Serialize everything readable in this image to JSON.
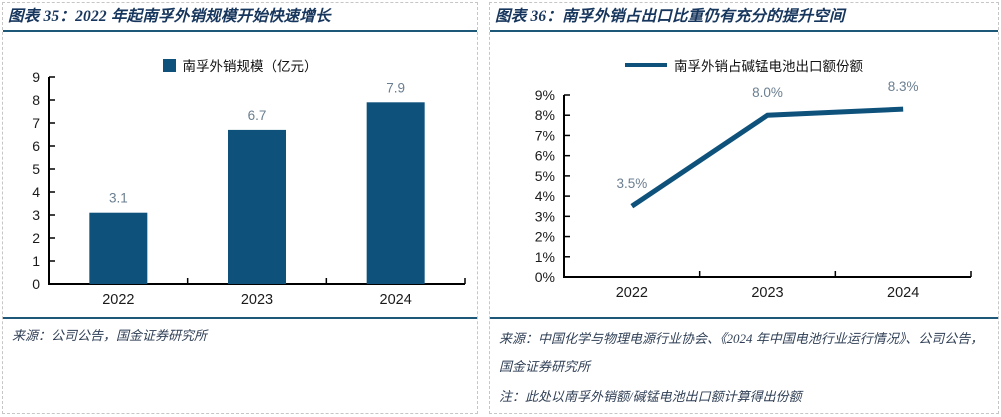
{
  "colors": {
    "accent": "#0E527C",
    "rule": "#1E5878",
    "title_text": "#17365D",
    "data_label": "#6A7E90",
    "axis_text": "#1A1A1A",
    "source_text": "#2F3F55",
    "panel_border": "#C6C6C6"
  },
  "left_panel": {
    "title": "图表 35：2022 年起南孚外销规模开始快速增长",
    "legend_label": "南孚外销规模（亿元）",
    "source": "来源：公司公告，国金证券研究所"
  },
  "right_panel": {
    "title": "图表 36：南孚外销占出口比重仍有充分的提升空间",
    "legend_label": "南孚外销占碱锰电池出口额份额",
    "source": "来源：中国化学与物理电源行业协会、《2024 年中国电池行业运行情况》、公司公告，国金证券研究所",
    "note": "注：此处以南孚外销额/碱锰电池出口额计算得出份额"
  },
  "chart_data": [
    {
      "type": "bar",
      "title": "2022 年起南孚外销规模开始快速增长",
      "legend": "南孚外销规模（亿元）",
      "categories": [
        "2022",
        "2023",
        "2024"
      ],
      "values": [
        3.1,
        6.7,
        7.9
      ],
      "data_labels": [
        "3.1",
        "6.7",
        "7.9"
      ],
      "ylim": [
        0,
        9
      ],
      "ytick_step": 1,
      "ytick_suffix": "",
      "grid": false,
      "legend_position": "top-center"
    },
    {
      "type": "line",
      "title": "南孚外销占出口比重仍有充分的提升空间",
      "legend": "南孚外销占碱锰电池出口额份额",
      "categories": [
        "2022",
        "2023",
        "2024"
      ],
      "values": [
        3.5,
        8.0,
        8.3
      ],
      "data_labels": [
        "3.5%",
        "8.0%",
        "8.3%"
      ],
      "ylim": [
        0,
        9
      ],
      "ytick_step": 1,
      "ytick_suffix": "%",
      "grid": false,
      "legend_position": "top-center"
    }
  ]
}
